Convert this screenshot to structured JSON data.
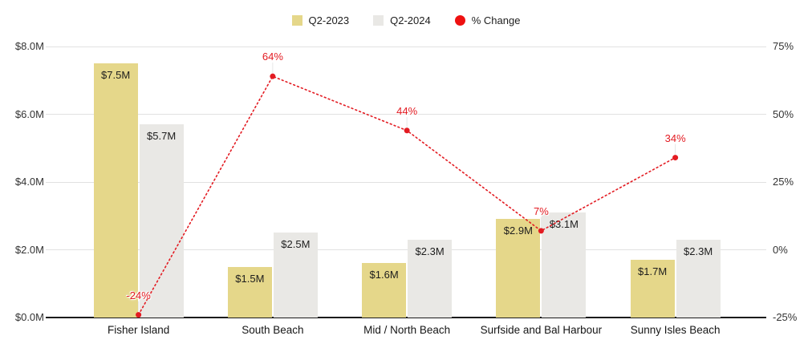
{
  "legend": {
    "items": [
      {
        "name": "q2-2023",
        "label": "Q2-2023",
        "color": "#e5d78a",
        "shape": "square"
      },
      {
        "name": "q2-2024",
        "label": "Q2-2024",
        "color": "#e9e8e5",
        "shape": "square"
      },
      {
        "name": "pct-change",
        "label": "% Change",
        "color": "#ee1111",
        "shape": "circle"
      }
    ]
  },
  "chart_data": {
    "type": "combo-bar-line",
    "title": "",
    "categories": [
      "Fisher Island",
      "South Beach",
      "Mid / North Beach",
      "Surfside and Bal Harbour",
      "Sunny Isles Beach"
    ],
    "series": [
      {
        "name": "Q2-2023",
        "type": "bar",
        "color": "#e5d78a",
        "values": [
          7.5,
          1.5,
          1.6,
          2.9,
          1.7
        ],
        "labels": [
          "$7.5M",
          "$1.5M",
          "$1.6M",
          "$2.9M",
          "$1.7M"
        ]
      },
      {
        "name": "Q2-2024",
        "type": "bar",
        "color": "#e9e8e5",
        "values": [
          5.7,
          2.5,
          2.3,
          3.1,
          2.3
        ],
        "labels": [
          "$5.7M",
          "$2.5M",
          "$2.3M",
          "$3.1M",
          "$2.3M"
        ]
      },
      {
        "name": "% Change",
        "type": "line",
        "color": "#e31b22",
        "point_color": "#e31b22",
        "line_style": "dotted",
        "values": [
          -24,
          64,
          44,
          7,
          34
        ],
        "labels": [
          "-24%",
          "64%",
          "44%",
          "7%",
          "34%"
        ]
      }
    ],
    "left_axis": {
      "title": "",
      "min": 0,
      "max": 8,
      "ticks": [
        "$8.0M",
        "$6.0M",
        "$4.0M",
        "$2.0M",
        "$0.0M"
      ]
    },
    "right_axis": {
      "title": "",
      "min": -25,
      "max": 75,
      "ticks": [
        "75%",
        "50%",
        "25%",
        "0%",
        "-25%"
      ]
    },
    "grid": true,
    "legend_position": "top-center",
    "colors": {
      "gridline": "#e1e1e1",
      "baseline": "#1b1b1b",
      "label_text": "#1d1d1d",
      "axis_text": "#333333"
    }
  }
}
